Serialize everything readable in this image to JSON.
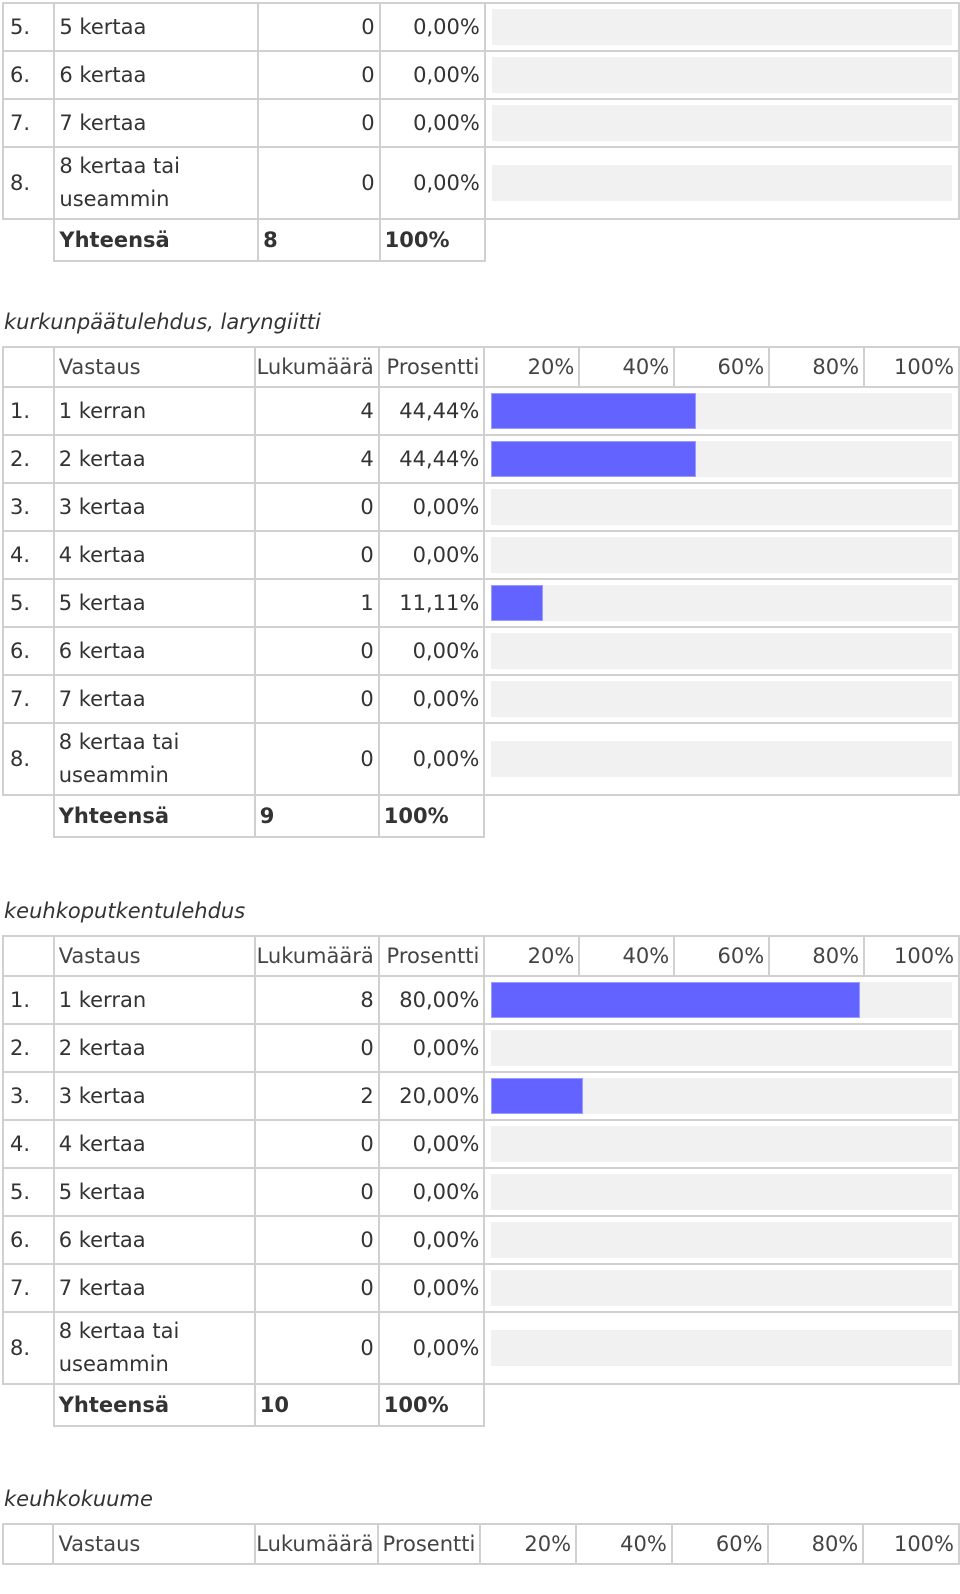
{
  "scale_labels": [
    "20%",
    "40%",
    "60%",
    "80%",
    "100%"
  ],
  "header": {
    "answer": "Vastaus",
    "count": "Lukumäärä",
    "percent": "Prosentti"
  },
  "total_label": "Yhteensä",
  "colors": {
    "bar": "#6363ff",
    "track": "#f1f1f1",
    "border": "#d0d0d0"
  },
  "sections": [
    {
      "title": "",
      "show_header": false,
      "rows": [
        {
          "num": "5.",
          "answer": "5 kertaa",
          "count": "0",
          "percent": "0,00%",
          "fraction": 0
        },
        {
          "num": "6.",
          "answer": "6 kertaa",
          "count": "0",
          "percent": "0,00%",
          "fraction": 0
        },
        {
          "num": "7.",
          "answer": "7 kertaa",
          "count": "0",
          "percent": "0,00%",
          "fraction": 0
        },
        {
          "num": "8.",
          "answer": "8 kertaa tai useammin",
          "count": "0",
          "percent": "0,00%",
          "fraction": 0
        }
      ],
      "total": {
        "count": "8",
        "percent": "100%"
      }
    },
    {
      "title": "kurkunpäätulehdus, laryngiitti",
      "show_header": true,
      "rows": [
        {
          "num": "1.",
          "answer": "1 kerran",
          "count": "4",
          "percent": "44,44%",
          "fraction": 0.4444
        },
        {
          "num": "2.",
          "answer": "2 kertaa",
          "count": "4",
          "percent": "44,44%",
          "fraction": 0.4444
        },
        {
          "num": "3.",
          "answer": "3 kertaa",
          "count": "0",
          "percent": "0,00%",
          "fraction": 0
        },
        {
          "num": "4.",
          "answer": "4 kertaa",
          "count": "0",
          "percent": "0,00%",
          "fraction": 0
        },
        {
          "num": "5.",
          "answer": "5 kertaa",
          "count": "1",
          "percent": "11,11%",
          "fraction": 0.1111
        },
        {
          "num": "6.",
          "answer": "6 kertaa",
          "count": "0",
          "percent": "0,00%",
          "fraction": 0
        },
        {
          "num": "7.",
          "answer": "7 kertaa",
          "count": "0",
          "percent": "0,00%",
          "fraction": 0
        },
        {
          "num": "8.",
          "answer": "8 kertaa tai useammin",
          "count": "0",
          "percent": "0,00%",
          "fraction": 0
        }
      ],
      "total": {
        "count": "9",
        "percent": "100%"
      }
    },
    {
      "title": "keuhkoputkentulehdus",
      "show_header": true,
      "rows": [
        {
          "num": "1.",
          "answer": "1 kerran",
          "count": "8",
          "percent": "80,00%",
          "fraction": 0.8
        },
        {
          "num": "2.",
          "answer": "2 kertaa",
          "count": "0",
          "percent": "0,00%",
          "fraction": 0
        },
        {
          "num": "3.",
          "answer": "3 kertaa",
          "count": "2",
          "percent": "20,00%",
          "fraction": 0.2
        },
        {
          "num": "4.",
          "answer": "4 kertaa",
          "count": "0",
          "percent": "0,00%",
          "fraction": 0
        },
        {
          "num": "5.",
          "answer": "5 kertaa",
          "count": "0",
          "percent": "0,00%",
          "fraction": 0
        },
        {
          "num": "6.",
          "answer": "6 kertaa",
          "count": "0",
          "percent": "0,00%",
          "fraction": 0
        },
        {
          "num": "7.",
          "answer": "7 kertaa",
          "count": "0",
          "percent": "0,00%",
          "fraction": 0
        },
        {
          "num": "8.",
          "answer": "8 kertaa tai useammin",
          "count": "0",
          "percent": "0,00%",
          "fraction": 0
        }
      ],
      "total": {
        "count": "10",
        "percent": "100%"
      }
    },
    {
      "title": "keuhkokuume",
      "show_header": true,
      "rows": [],
      "total": null
    }
  ]
}
